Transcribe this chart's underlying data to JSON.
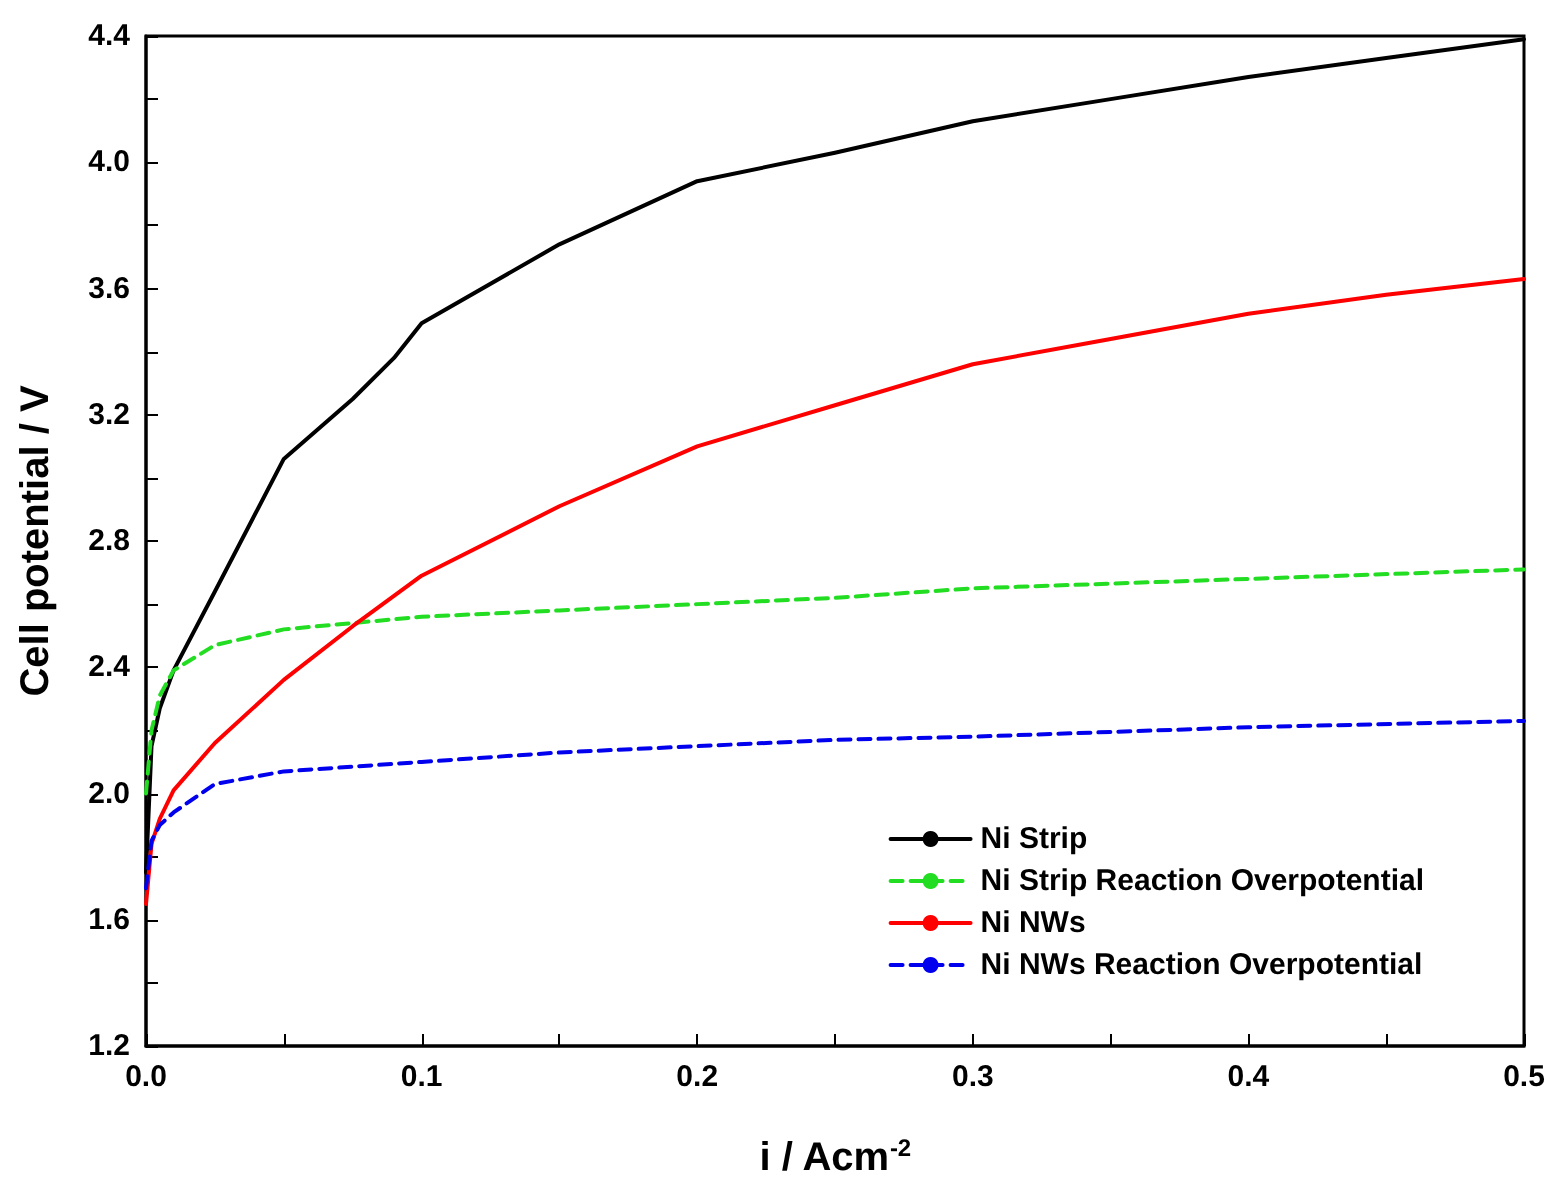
{
  "chart_data": {
    "type": "line",
    "xlabel": "i / Acm$^{-2}$",
    "ylabel": "Cell potential / V",
    "xlim": [
      0,
      0.5
    ],
    "ylim": [
      1.2,
      4.4
    ],
    "xticks": [
      {
        "value": 0,
        "label": "0.0"
      },
      {
        "value": 0.05,
        "label": null
      },
      {
        "value": 0.1,
        "label": "0.1"
      },
      {
        "value": 0.15,
        "label": null
      },
      {
        "value": 0.2,
        "label": "0.2"
      },
      {
        "value": 0.25,
        "label": null
      },
      {
        "value": 0.3,
        "label": "0.3"
      },
      {
        "value": 0.35,
        "label": null
      },
      {
        "value": 0.4,
        "label": "0.4"
      },
      {
        "value": 0.45,
        "label": null
      },
      {
        "value": 0.5,
        "label": "0.5"
      }
    ],
    "yticks": [
      1.2,
      {
        "value": 1.4,
        "label": null
      },
      1.6,
      {
        "value": 1.8,
        "label": null
      },
      {
        "value": 2.0,
        "label": "2.0"
      },
      {
        "value": 2.2,
        "label": null
      },
      2.4,
      {
        "value": 2.6,
        "label": null
      },
      2.8,
      {
        "value": 3.0,
        "label": null
      },
      3.2,
      {
        "value": 3.4,
        "label": null
      },
      3.6,
      {
        "value": 3.8,
        "label": null
      },
      {
        "value": 4.0,
        "label": "4.0"
      },
      {
        "value": 4.2,
        "label": null
      },
      4.4
    ],
    "grid": false,
    "legend": "bottom right",
    "marker": "none",
    "series": [
      {
        "name": "Ni Strip",
        "color": "#000000",
        "line_style": "solid",
        "x": [
          0,
          0.002,
          0.005,
          0.01,
          0.025,
          0.05,
          0.075,
          0.09,
          0.1,
          0.15,
          0.2,
          0.25,
          0.3,
          0.35,
          0.4,
          0.45,
          0.5
        ],
        "values": [
          1.75,
          2.15,
          2.27,
          2.39,
          2.64,
          3.06,
          3.25,
          3.38,
          3.49,
          3.74,
          3.94,
          4.03,
          4.13,
          4.2,
          4.27,
          4.33,
          4.39
        ]
      },
      {
        "name": "Ni Strip Reaction Overpotential",
        "color": "#22dd22",
        "line_style": "dashed",
        "x": [
          0,
          0.002,
          0.005,
          0.01,
          0.025,
          0.05,
          0.1,
          0.15,
          0.2,
          0.25,
          0.3,
          0.4,
          0.5
        ],
        "values": [
          2.0,
          2.2,
          2.31,
          2.39,
          2.47,
          2.52,
          2.56,
          2.58,
          2.6,
          2.62,
          2.65,
          2.68,
          2.71
        ]
      },
      {
        "name": "Ni NWs",
        "color": "#ff0000",
        "line_style": "solid",
        "x": [
          0,
          0.002,
          0.005,
          0.01,
          0.025,
          0.05,
          0.075,
          0.1,
          0.15,
          0.2,
          0.25,
          0.3,
          0.35,
          0.4,
          0.45,
          0.5
        ],
        "values": [
          1.65,
          1.84,
          1.92,
          2.01,
          2.16,
          2.36,
          2.53,
          2.69,
          2.91,
          3.1,
          3.23,
          3.36,
          3.44,
          3.52,
          3.58,
          3.63
        ]
      },
      {
        "name": "Ni NWs Reaction Overpotential",
        "color": "#0000ee",
        "line_style": "dashed",
        "x": [
          0,
          0.002,
          0.005,
          0.01,
          0.025,
          0.05,
          0.1,
          0.15,
          0.2,
          0.25,
          0.3,
          0.4,
          0.5
        ],
        "values": [
          1.7,
          1.85,
          1.9,
          1.94,
          2.03,
          2.07,
          2.1,
          2.13,
          2.15,
          2.17,
          2.18,
          2.21,
          2.23
        ]
      }
    ]
  }
}
